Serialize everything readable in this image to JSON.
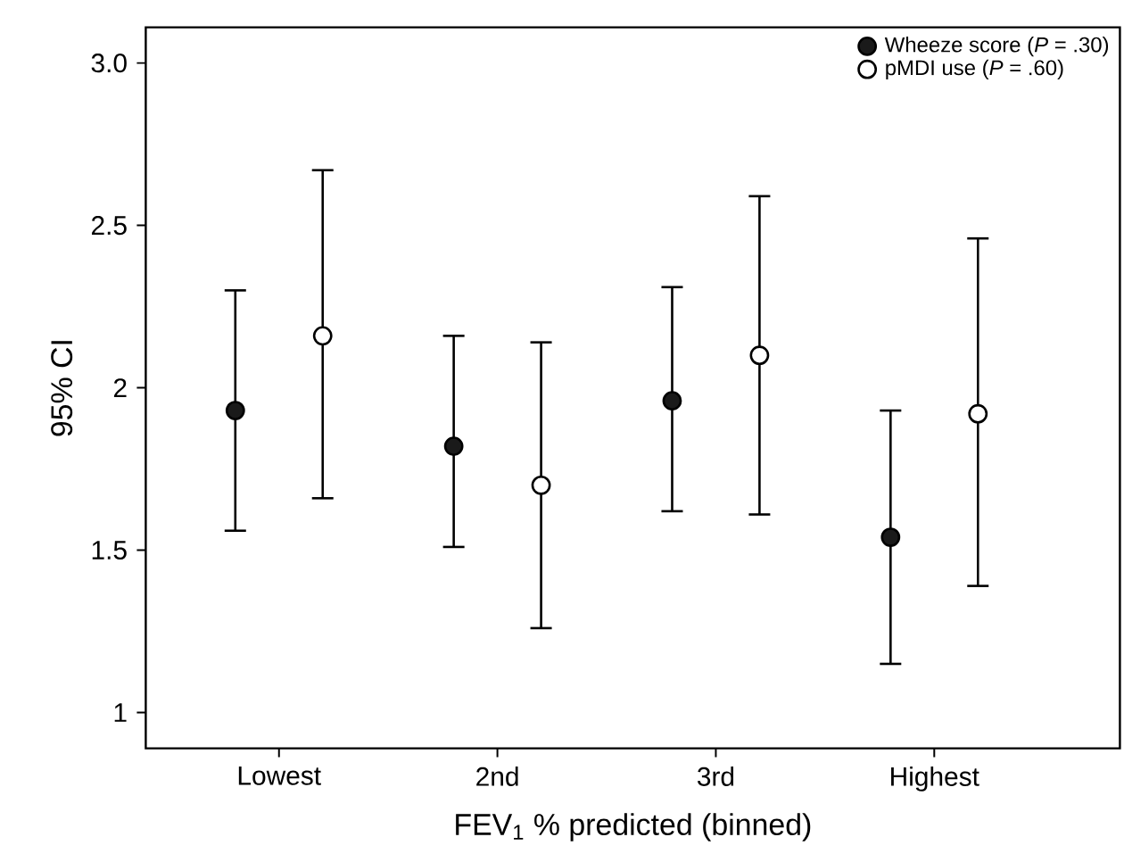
{
  "chart_data": {
    "type": "scatter",
    "xlabel": "FEV$_{1}$ % predicted (binned)",
    "ylabel": "95% CI",
    "categories": [
      "Lowest",
      "2nd",
      "3rd",
      "Highest"
    ],
    "series": [
      {
        "name": "Wheeze score (*P* = .30)",
        "color": "#1a1a1a",
        "values": [
          1.93,
          1.82,
          1.96,
          1.54
        ],
        "errors": [
          [
            1.56,
            2.3
          ],
          [
            1.51,
            2.16
          ],
          [
            1.62,
            2.31
          ],
          [
            1.15,
            1.93
          ]
        ]
      },
      {
        "name": "pMDI use (*P* = .60)",
        "color": "#ffffff",
        "values": [
          2.16,
          1.7,
          2.1,
          1.92
        ],
        "errors": [
          [
            1.66,
            2.67
          ],
          [
            1.26,
            2.14
          ],
          [
            1.61,
            2.59
          ],
          [
            1.39,
            2.46
          ]
        ]
      }
    ],
    "ylim": [
      0.89,
      3.11
    ],
    "yticks": [
      1,
      1.5,
      2,
      2.5,
      {
        "value": 3,
        "label": "3.0"
      }
    ],
    "grid": false,
    "legend": "top right",
    "marker": "circle"
  }
}
